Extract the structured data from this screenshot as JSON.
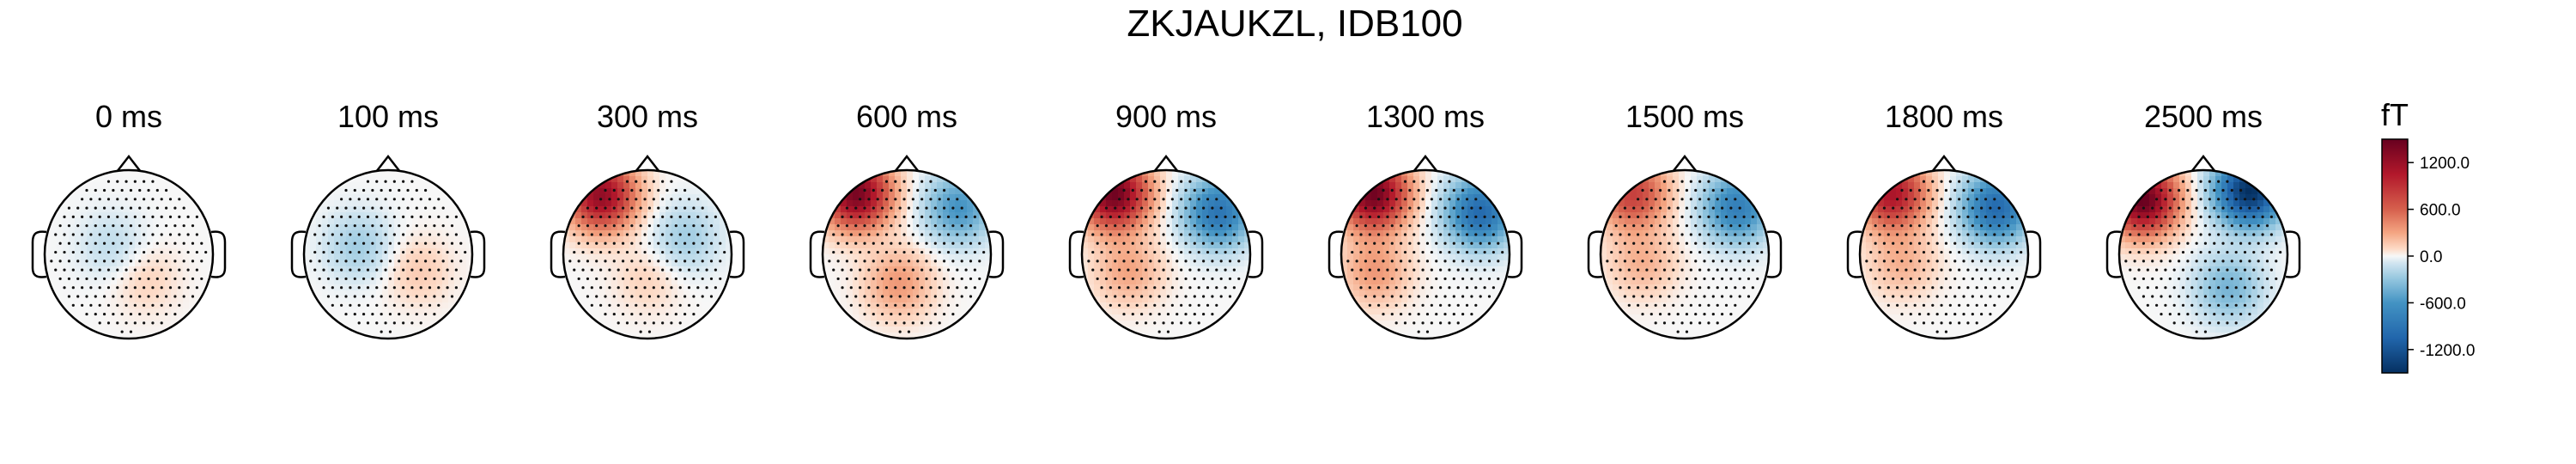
{
  "figure": {
    "title": "ZKJAUKZL, IDB100"
  },
  "chart_data": {
    "type": "heatmap",
    "title": "ZKJAUKZL, IDB100",
    "panel_labels": [
      "0 ms",
      "100 ms",
      "300 ms",
      "600 ms",
      "900 ms",
      "1300 ms",
      "1500 ms",
      "1800 ms",
      "2500 ms"
    ],
    "colorbar": {
      "label": "fT",
      "range": [
        -1500,
        1500
      ],
      "ticks": [
        1200,
        600,
        0,
        -600,
        -1200
      ],
      "tick_labels": [
        "1200.0",
        "600.0",
        "0.0",
        "-600.0",
        "-1200.0"
      ],
      "colormap": "RdBu_r",
      "colors": {
        "max": "#67001f",
        "high": "#d6604d",
        "mid": "#f7f7f7",
        "low": "#4393c3",
        "min": "#053061"
      }
    },
    "maps": [
      {
        "time": "0 ms",
        "blobs": [
          {
            "u": -0.2,
            "v": 0.1,
            "amp": -150
          },
          {
            "u": 0.2,
            "v": -0.3,
            "amp": 120
          }
        ]
      },
      {
        "time": "100 ms",
        "blobs": [
          {
            "u": -0.35,
            "v": 0.1,
            "amp": -250
          },
          {
            "u": 0.35,
            "v": -0.2,
            "amp": 150
          }
        ]
      },
      {
        "time": "300 ms",
        "blobs": [
          {
            "u": -0.55,
            "v": 0.7,
            "amp": 1250
          },
          {
            "u": 0.45,
            "v": 0.2,
            "amp": -250
          },
          {
            "u": 0.0,
            "v": -0.3,
            "amp": 120
          }
        ]
      },
      {
        "time": "600 ms",
        "blobs": [
          {
            "u": -0.6,
            "v": 0.72,
            "amp": 1400
          },
          {
            "u": 0.62,
            "v": 0.55,
            "amp": -600
          },
          {
            "u": -0.1,
            "v": -0.35,
            "amp": 350
          }
        ]
      },
      {
        "time": "900 ms",
        "blobs": [
          {
            "u": -0.62,
            "v": 0.72,
            "amp": 1450
          },
          {
            "u": 0.62,
            "v": 0.5,
            "amp": -900
          },
          {
            "u": -0.45,
            "v": -0.2,
            "amp": 300
          }
        ]
      },
      {
        "time": "1300 ms",
        "blobs": [
          {
            "u": -0.62,
            "v": 0.72,
            "amp": 1450
          },
          {
            "u": 0.65,
            "v": 0.5,
            "amp": -1000
          },
          {
            "u": -0.6,
            "v": -0.2,
            "amp": 350
          }
        ]
      },
      {
        "time": "1500 ms",
        "blobs": [
          {
            "u": -0.62,
            "v": 0.72,
            "amp": 800
          },
          {
            "u": 0.62,
            "v": 0.55,
            "amp": -800
          },
          {
            "u": -0.5,
            "v": -0.1,
            "amp": 250
          }
        ]
      },
      {
        "time": "1800 ms",
        "blobs": [
          {
            "u": -0.62,
            "v": 0.72,
            "amp": 1100
          },
          {
            "u": 0.62,
            "v": 0.55,
            "amp": -1000
          },
          {
            "u": -0.5,
            "v": -0.1,
            "amp": 250
          }
        ]
      },
      {
        "time": "2500 ms",
        "blobs": [
          {
            "u": -0.72,
            "v": 0.65,
            "amp": 1500
          },
          {
            "u": 0.55,
            "v": 0.75,
            "amp": -1500
          },
          {
            "u": 0.3,
            "v": -0.4,
            "amp": -400
          }
        ]
      }
    ]
  }
}
